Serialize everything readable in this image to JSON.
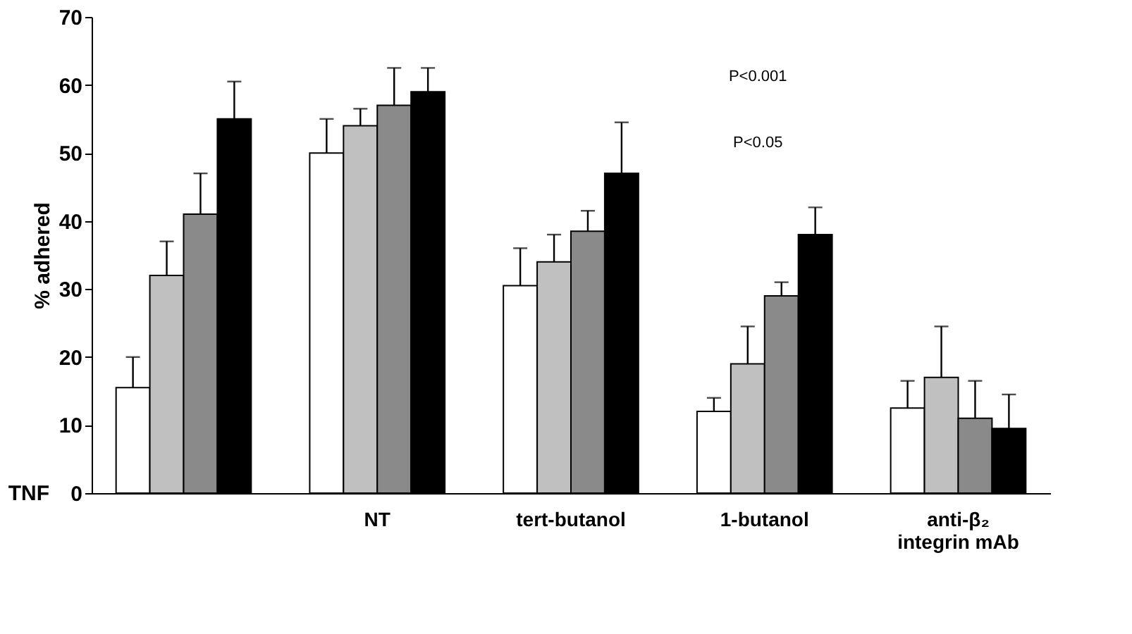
{
  "chart_data": {
    "type": "bar",
    "ylabel": "% adhered",
    "categories": [
      null,
      "NT",
      "tert-butanol",
      "1-butanol",
      "anti-β₂ integrin mAb"
    ],
    "series": [
      {
        "color": "#ffffff",
        "values": [
          15.5,
          50,
          30.5,
          12,
          12.5
        ],
        "errors": [
          [
            15.5,
            20
          ],
          [
            50,
            55
          ],
          [
            30.5,
            36
          ],
          [
            12,
            14
          ],
          [
            12.5,
            16.5
          ]
        ]
      },
      {
        "color": "#c0c0c0",
        "values": [
          32,
          54,
          34,
          19,
          17
        ],
        "errors": [
          [
            32,
            37
          ],
          [
            54,
            56.5
          ],
          [
            34,
            38
          ],
          [
            19,
            24.5
          ],
          [
            17,
            24.5
          ]
        ]
      },
      {
        "color": "#8a8a8a",
        "values": [
          41,
          57,
          38.5,
          29,
          11
        ],
        "errors": [
          [
            41,
            47
          ],
          [
            57,
            62.5
          ],
          [
            38.5,
            41.5
          ],
          [
            29,
            31
          ],
          [
            11,
            16.5
          ]
        ]
      },
      {
        "color": "#000000",
        "values": [
          55,
          59,
          47,
          38,
          9.5
        ],
        "errors": [
          [
            55,
            60.5
          ],
          [
            59,
            62.5
          ],
          [
            47,
            54.5
          ],
          [
            38,
            42
          ],
          [
            9.5,
            14.5
          ]
        ]
      }
    ],
    "ylim": [
      0,
      70
    ],
    "yticks": [
      0,
      10,
      20,
      30,
      40,
      50,
      60,
      70
    ],
    "grid": false,
    "legend": false,
    "annotations": [
      "TNF",
      "P<0.001",
      "P<0.05"
    ]
  }
}
